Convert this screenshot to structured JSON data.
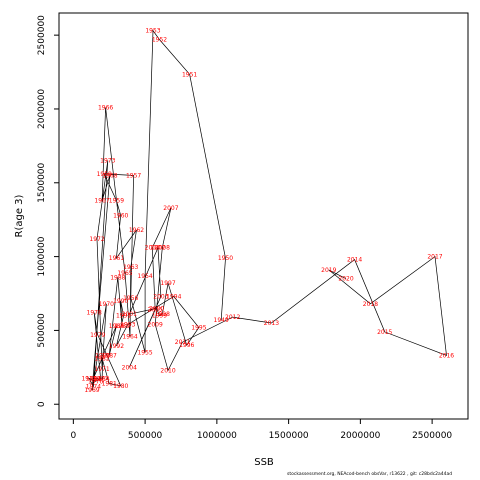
{
  "chart_data": {
    "type": "line",
    "xlabel": "SSB",
    "ylabel": "R(age 3)",
    "xlim": [
      -100000,
      2750000
    ],
    "ylim": [
      -100000,
      2650000
    ],
    "xticks": [
      0,
      500000,
      1000000,
      1500000,
      2000000,
      2500000
    ],
    "yticks": [
      0,
      500000,
      1000000,
      1500000,
      2000000,
      2500000
    ],
    "line_color": "#000000",
    "label_color": "#ff0000",
    "points": [
      {
        "label": "1951",
        "x": 810000,
        "y": 2235000
      },
      {
        "label": "1952",
        "x": 600000,
        "y": 2470000
      },
      {
        "label": "1953",
        "x": 555000,
        "y": 2530000
      },
      {
        "label": "1954",
        "x": 500000,
        "y": 870000
      },
      {
        "label": "1955",
        "x": 500000,
        "y": 350000
      },
      {
        "label": "1956",
        "x": 400000,
        "y": 720000
      },
      {
        "label": "1957",
        "x": 420000,
        "y": 1550000
      },
      {
        "label": "1958",
        "x": 215000,
        "y": 1560000
      },
      {
        "label": "1959",
        "x": 300000,
        "y": 1380000
      },
      {
        "label": "1960",
        "x": 330000,
        "y": 1280000
      },
      {
        "label": "1961",
        "x": 300000,
        "y": 990000
      },
      {
        "label": "1962",
        "x": 440000,
        "y": 1180000
      },
      {
        "label": "1963",
        "x": 400000,
        "y": 930000
      },
      {
        "label": "1964",
        "x": 395000,
        "y": 460000
      },
      {
        "label": "1965",
        "x": 360000,
        "y": 890000
      },
      {
        "label": "1966",
        "x": 225000,
        "y": 2010000
      },
      {
        "label": "1967",
        "x": 200000,
        "y": 1380000
      },
      {
        "label": "1968",
        "x": 255000,
        "y": 1550000
      },
      {
        "label": "1969",
        "x": 130000,
        "y": 95000
      },
      {
        "label": "1970",
        "x": 230000,
        "y": 680000
      },
      {
        "label": "1971",
        "x": 200000,
        "y": 240000
      },
      {
        "label": "1972",
        "x": 165000,
        "y": 1120000
      },
      {
        "label": "1973",
        "x": 240000,
        "y": 1650000
      },
      {
        "label": "1974",
        "x": 140000,
        "y": 120000
      },
      {
        "label": "1975",
        "x": 110000,
        "y": 175000
      },
      {
        "label": "1976",
        "x": 155000,
        "y": 155000
      },
      {
        "label": "1977",
        "x": 190000,
        "y": 175000
      },
      {
        "label": "1978",
        "x": 145000,
        "y": 620000
      },
      {
        "label": "1979",
        "x": 170000,
        "y": 470000
      },
      {
        "label": "1980",
        "x": 330000,
        "y": 125000
      },
      {
        "label": "1981",
        "x": 250000,
        "y": 140000
      },
      {
        "label": "1982",
        "x": 200000,
        "y": 310000
      },
      {
        "label": "1983",
        "x": 140000,
        "y": 175000
      },
      {
        "label": "1984",
        "x": 200000,
        "y": 170000
      },
      {
        "label": "1985",
        "x": 205000,
        "y": 330000
      },
      {
        "label": "1986",
        "x": 300000,
        "y": 530000
      },
      {
        "label": "1987",
        "x": 250000,
        "y": 330000
      },
      {
        "label": "1988",
        "x": 310000,
        "y": 860000
      },
      {
        "label": "1989",
        "x": 340000,
        "y": 530000
      },
      {
        "label": "1990",
        "x": 330000,
        "y": 700000
      },
      {
        "label": "1991",
        "x": 350000,
        "y": 600000
      },
      {
        "label": "1992",
        "x": 300000,
        "y": 395000
      },
      {
        "label": "1993",
        "x": 380000,
        "y": 540000
      },
      {
        "label": "1994",
        "x": 700000,
        "y": 730000
      },
      {
        "label": "1995",
        "x": 875000,
        "y": 520000
      },
      {
        "label": "1996",
        "x": 790000,
        "y": 400000
      },
      {
        "label": "1997",
        "x": 660000,
        "y": 820000
      },
      {
        "label": "1998",
        "x": 620000,
        "y": 610000
      },
      {
        "label": "1999",
        "x": 600000,
        "y": 600000
      },
      {
        "label": "2000",
        "x": 580000,
        "y": 650000
      },
      {
        "label": "2001",
        "x": 390000,
        "y": 610000
      },
      {
        "label": "2002",
        "x": 590000,
        "y": 1060000
      },
      {
        "label": "2003",
        "x": 610000,
        "y": 730000
      },
      {
        "label": "2004",
        "x": 390000,
        "y": 250000
      },
      {
        "label": "2005",
        "x": 570000,
        "y": 640000
      },
      {
        "label": "2006",
        "x": 550000,
        "y": 1060000
      },
      {
        "label": "2007",
        "x": 680000,
        "y": 1330000
      },
      {
        "label": "2008",
        "x": 620000,
        "y": 1060000
      },
      {
        "label": "2009",
        "x": 570000,
        "y": 540000
      },
      {
        "label": "2010",
        "x": 660000,
        "y": 230000
      },
      {
        "label": "2011",
        "x": 760000,
        "y": 420000
      },
      {
        "label": "2012",
        "x": 1110000,
        "y": 590000
      },
      {
        "label": "2013",
        "x": 1380000,
        "y": 550000
      },
      {
        "label": "2014",
        "x": 1960000,
        "y": 980000
      },
      {
        "label": "2015",
        "x": 2170000,
        "y": 490000
      },
      {
        "label": "2016",
        "x": 2600000,
        "y": 330000
      },
      {
        "label": "2017",
        "x": 2520000,
        "y": 1000000
      },
      {
        "label": "2018",
        "x": 2070000,
        "y": 680000
      },
      {
        "label": "2019",
        "x": 1780000,
        "y": 910000
      },
      {
        "label": "2020",
        "x": 1900000,
        "y": 850000
      },
      {
        "label": "1949",
        "x": 1030000,
        "y": 570000
      },
      {
        "label": "1950",
        "x": 1060000,
        "y": 990000
      }
    ]
  },
  "footer_text": "stockassessment.org,  NEAcod-bench  obsVar,  r13622 ,  git: c28bdc2a44ad"
}
